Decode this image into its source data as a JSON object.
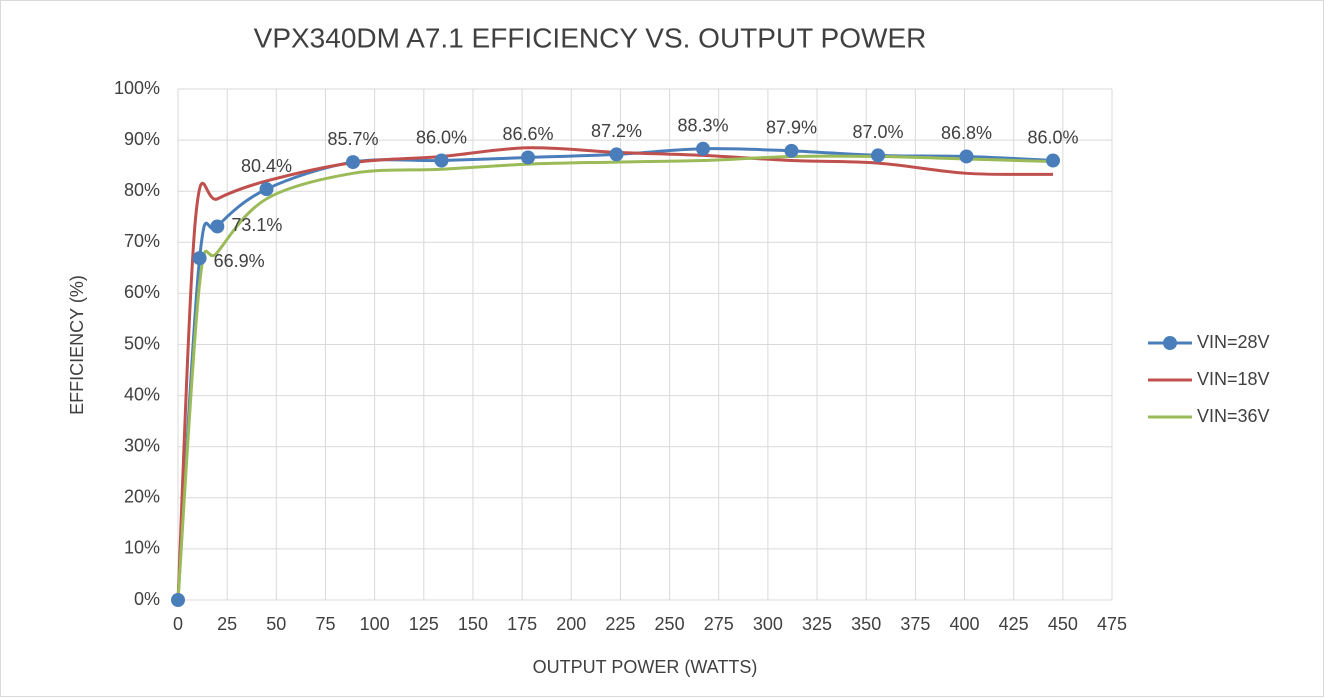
{
  "chart_data": {
    "type": "line",
    "title": "VPX340DM A7.1 EFFICIENCY VS. OUTPUT POWER",
    "xlabel": "OUTPUT POWER (WATTS)",
    "ylabel": "EFFICIENCY (%)",
    "xlim": [
      0,
      475
    ],
    "xticks": [
      0,
      25,
      50,
      75,
      100,
      125,
      150,
      175,
      200,
      225,
      250,
      275,
      300,
      325,
      350,
      375,
      400,
      425,
      450,
      475
    ],
    "ylim": [
      0,
      100
    ],
    "yticks": [
      {
        "value": 0,
        "label": "0%"
      },
      {
        "value": 10,
        "label": "10%"
      },
      {
        "value": 20,
        "label": "20%"
      },
      {
        "value": 30,
        "label": "30%"
      },
      {
        "value": 40,
        "label": "40%"
      },
      {
        "value": 50,
        "label": "50%"
      },
      {
        "value": 60,
        "label": "60%"
      },
      {
        "value": 70,
        "label": "70%"
      },
      {
        "value": 80,
        "label": "80%"
      },
      {
        "value": 90,
        "label": "90%"
      },
      {
        "value": 100,
        "label": "100%"
      }
    ],
    "grid": true,
    "legend": "right",
    "series": [
      {
        "name": "VIN=28V",
        "color": "#4a7ebb",
        "markers": true,
        "x": [
          0,
          11,
          20,
          45,
          89,
          134,
          178,
          223,
          267,
          312,
          356,
          401,
          445
        ],
        "values": [
          0,
          66.9,
          73.1,
          80.4,
          85.7,
          86.0,
          86.6,
          87.2,
          88.3,
          87.9,
          87.0,
          86.8,
          86.0
        ],
        "value_labels": [
          null,
          "66.9%",
          "73.1%",
          "80.4%",
          "85.7%",
          "86.0%",
          "86.6%",
          "87.2%",
          "88.3%",
          "87.9%",
          "87.0%",
          "86.8%",
          "86.0%"
        ]
      },
      {
        "name": "VIN=18V",
        "color": "#c0504d",
        "markers": false,
        "x": [
          0,
          9,
          20,
          45,
          89,
          134,
          178,
          223,
          267,
          312,
          356,
          401,
          445
        ],
        "values": [
          0,
          75,
          78.5,
          82,
          85.6,
          86.8,
          88.5,
          87.6,
          87.0,
          86.0,
          85.5,
          83.5,
          83.3
        ]
      },
      {
        "name": "VIN=36V",
        "color": "#9bbb59",
        "markers": false,
        "x": [
          0,
          11,
          20,
          45,
          89,
          134,
          178,
          223,
          267,
          312,
          356,
          401,
          445
        ],
        "values": [
          0,
          62,
          68,
          78.5,
          83.5,
          84.3,
          85.3,
          85.7,
          86.0,
          86.8,
          86.8,
          86.3,
          85.8
        ]
      }
    ]
  }
}
